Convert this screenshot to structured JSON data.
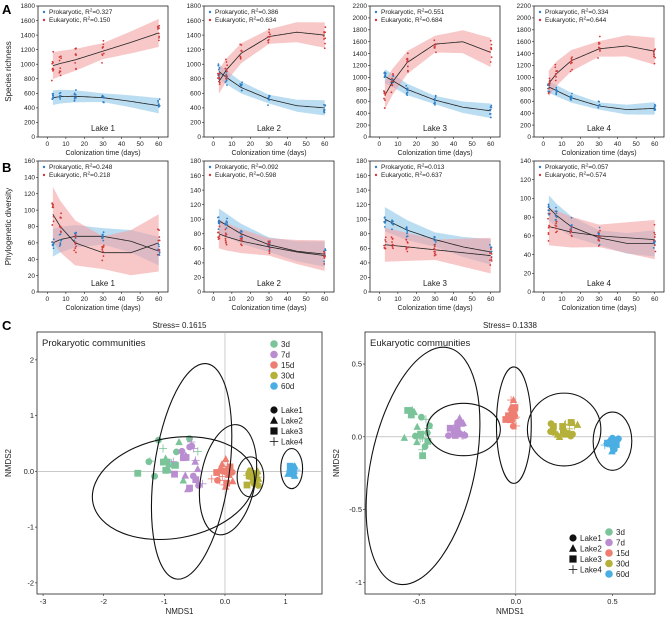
{
  "panel_letters": {
    "a": "A",
    "b": "B",
    "c": "C"
  },
  "chart_data": [
    {
      "id": "a1",
      "type": "scatter",
      "panel": "A",
      "title": "Lake 1",
      "xlabel": "Colonization time (days)",
      "ylabel": "Species richness",
      "ylim": [
        0,
        1800
      ],
      "yticks": [
        0,
        200,
        400,
        600,
        800,
        1000,
        1200,
        1400,
        1600,
        1800
      ],
      "xlim": [
        -5,
        65
      ],
      "xticks": [
        0,
        10,
        20,
        30,
        40,
        50,
        60
      ],
      "legend": [
        {
          "name": "Prokaryotic",
          "r2": "0.327"
        },
        {
          "name": "Eukaryotic",
          "r2": "0.150"
        }
      ],
      "series": [
        {
          "name": "Prokaryotic",
          "fit": [
            [
              3,
              540
            ],
            [
              7,
              555
            ],
            [
              15,
              560
            ],
            [
              30,
              540
            ],
            [
              45,
              490
            ],
            [
              60,
              430
            ]
          ],
          "band": 60,
          "spread": 110
        },
        {
          "name": "Eukaryotic",
          "fit": [
            [
              3,
              980
            ],
            [
              7,
              1010
            ],
            [
              15,
              1060
            ],
            [
              30,
              1180
            ],
            [
              45,
              1300
            ],
            [
              60,
              1430
            ]
          ],
          "band": 110,
          "spread": 250
        }
      ]
    },
    {
      "id": "a2",
      "type": "scatter",
      "panel": "A",
      "title": "Lake 2",
      "xlabel": "Colonization time (days)",
      "ylabel": "",
      "ylim": [
        0,
        1800
      ],
      "yticks": [
        0,
        200,
        400,
        600,
        800,
        1000,
        1200,
        1400,
        1600,
        1800
      ],
      "xlim": [
        -5,
        65
      ],
      "xticks": [
        0,
        10,
        20,
        30,
        40,
        50,
        60
      ],
      "legend": [
        {
          "name": "Prokaryotic",
          "r2": "0.386"
        },
        {
          "name": "Eukaryotic",
          "r2": "0.634"
        }
      ],
      "series": [
        {
          "name": "Prokaryotic",
          "fit": [
            [
              3,
              900
            ],
            [
              7,
              820
            ],
            [
              15,
              680
            ],
            [
              30,
              520
            ],
            [
              45,
              430
            ],
            [
              60,
              400
            ]
          ],
          "band": 60,
          "spread": 120
        },
        {
          "name": "Eukaryotic",
          "fit": [
            [
              3,
              760
            ],
            [
              7,
              920
            ],
            [
              15,
              1150
            ],
            [
              30,
              1380
            ],
            [
              45,
              1440
            ],
            [
              60,
              1400
            ]
          ],
          "band": 100,
          "spread": 220
        }
      ]
    },
    {
      "id": "a3",
      "type": "scatter",
      "panel": "A",
      "title": "Lake 3",
      "xlabel": "Colonization time (days)",
      "ylabel": "",
      "ylim": [
        0,
        2200
      ],
      "yticks": [
        0,
        200,
        400,
        600,
        800,
        1000,
        1200,
        1400,
        1600,
        1800,
        2000,
        2200
      ],
      "xlim": [
        -5,
        65
      ],
      "xticks": [
        0,
        10,
        20,
        30,
        40,
        50,
        60
      ],
      "legend": [
        {
          "name": "Prokaryotic",
          "r2": "0.551"
        },
        {
          "name": "Eukaryotic",
          "r2": "0.684"
        }
      ],
      "series": [
        {
          "name": "Prokaryotic",
          "fit": [
            [
              3,
              1020
            ],
            [
              7,
              950
            ],
            [
              15,
              800
            ],
            [
              30,
              620
            ],
            [
              45,
              500
            ],
            [
              60,
              440
            ]
          ],
          "band": 70,
          "spread": 130
        },
        {
          "name": "Eukaryotic",
          "fit": [
            [
              3,
              700
            ],
            [
              7,
              920
            ],
            [
              15,
              1250
            ],
            [
              30,
              1560
            ],
            [
              45,
              1600
            ],
            [
              60,
              1420
            ]
          ],
          "band": 140,
          "spread": 260
        }
      ]
    },
    {
      "id": "a4",
      "type": "scatter",
      "panel": "A",
      "title": "Lake 4",
      "xlabel": "Colonization time (days)",
      "ylabel": "",
      "ylim": [
        0,
        2200
      ],
      "yticks": [
        0,
        200,
        400,
        600,
        800,
        1000,
        1200,
        1400,
        1600,
        1800,
        2000,
        2200
      ],
      "xlim": [
        -5,
        65
      ],
      "xticks": [
        0,
        10,
        20,
        30,
        40,
        50,
        60
      ],
      "legend": [
        {
          "name": "Prokaryotic",
          "r2": "0.334"
        },
        {
          "name": "Eukaryotic",
          "r2": "0.644"
        }
      ],
      "series": [
        {
          "name": "Prokaryotic",
          "fit": [
            [
              3,
              840
            ],
            [
              7,
              780
            ],
            [
              15,
              660
            ],
            [
              30,
              520
            ],
            [
              45,
              460
            ],
            [
              60,
              480
            ]
          ],
          "band": 60,
          "spread": 120
        },
        {
          "name": "Eukaryotic",
          "fit": [
            [
              3,
              900
            ],
            [
              7,
              1060
            ],
            [
              15,
              1280
            ],
            [
              30,
              1480
            ],
            [
              45,
              1530
            ],
            [
              60,
              1440
            ]
          ],
          "band": 130,
          "spread": 260
        }
      ]
    },
    {
      "id": "b1",
      "type": "scatter",
      "panel": "B",
      "title": "Lake 1",
      "xlabel": "Colonization time (days)",
      "ylabel": "Phylogenetic diversity",
      "ylim": [
        0,
        160
      ],
      "yticks": [
        0,
        20,
        40,
        60,
        80,
        100,
        120,
        140,
        160
      ],
      "xlim": [
        -5,
        65
      ],
      "xticks": [
        0,
        10,
        20,
        30,
        40,
        50,
        60
      ],
      "legend": [
        {
          "name": "Prokaryotic",
          "r2": "0.248"
        },
        {
          "name": "Eukaryotic",
          "r2": "0.218"
        }
      ],
      "series": [
        {
          "name": "Prokaryotic",
          "fit": [
            [
              3,
              60
            ],
            [
              7,
              64
            ],
            [
              15,
              68
            ],
            [
              30,
              68
            ],
            [
              45,
              62
            ],
            [
              60,
              50
            ]
          ],
          "band": 10,
          "spread": 14
        },
        {
          "name": "Eukaryotic",
          "fit": [
            [
              3,
              95
            ],
            [
              7,
              80
            ],
            [
              15,
              60
            ],
            [
              30,
              48
            ],
            [
              45,
              48
            ],
            [
              60,
              60
            ]
          ],
          "band": 20,
          "spread": 28
        }
      ]
    },
    {
      "id": "b2",
      "type": "scatter",
      "panel": "B",
      "title": "Lake 2",
      "xlabel": "Colonization time (days)",
      "ylabel": "",
      "ylim": [
        0,
        180
      ],
      "yticks": [
        0,
        20,
        40,
        60,
        80,
        100,
        120,
        140,
        160,
        180
      ],
      "xlim": [
        -5,
        65
      ],
      "xticks": [
        0,
        10,
        20,
        30,
        40,
        50,
        60
      ],
      "legend": [
        {
          "name": "Prokaryotic",
          "r2": "0.092"
        },
        {
          "name": "Eukaryotic",
          "r2": "0.598"
        }
      ],
      "series": [
        {
          "name": "Prokaryotic",
          "fit": [
            [
              3,
              98
            ],
            [
              7,
              92
            ],
            [
              15,
              80
            ],
            [
              30,
              65
            ],
            [
              45,
              56
            ],
            [
              60,
              52
            ]
          ],
          "band": 10,
          "spread": 14
        },
        {
          "name": "Eukaryotic",
          "fit": [
            [
              3,
              80
            ],
            [
              7,
              76
            ],
            [
              15,
              70
            ],
            [
              30,
              62
            ],
            [
              45,
              55
            ],
            [
              60,
              50
            ]
          ],
          "band": 12,
          "spread": 16
        }
      ]
    },
    {
      "id": "b3",
      "type": "scatter",
      "panel": "B",
      "title": "Lake 3",
      "xlabel": "Colonization time (days)",
      "ylabel": "",
      "ylim": [
        0,
        180
      ],
      "yticks": [
        0,
        20,
        40,
        60,
        80,
        100,
        120,
        140,
        160,
        180
      ],
      "xlim": [
        -5,
        65
      ],
      "xticks": [
        0,
        10,
        20,
        30,
        40,
        50,
        60
      ],
      "legend": [
        {
          "name": "Prokaryotic",
          "r2": "0.013"
        },
        {
          "name": "Eukaryotic",
          "r2": "0.637"
        }
      ],
      "series": [
        {
          "name": "Prokaryotic",
          "fit": [
            [
              3,
              100
            ],
            [
              7,
              95
            ],
            [
              15,
              85
            ],
            [
              30,
              72
            ],
            [
              45,
              62
            ],
            [
              60,
              55
            ]
          ],
          "band": 10,
          "spread": 14
        },
        {
          "name": "Eukaryotic",
          "fit": [
            [
              3,
              65
            ],
            [
              7,
              64
            ],
            [
              15,
              62
            ],
            [
              30,
              58
            ],
            [
              45,
              54
            ],
            [
              60,
              50
            ]
          ],
          "band": 14,
          "spread": 18
        }
      ]
    },
    {
      "id": "b4",
      "type": "scatter",
      "panel": "B",
      "title": "Lake 4",
      "xlabel": "Colonization time (days)",
      "ylabel": "",
      "ylim": [
        0,
        140
      ],
      "yticks": [
        0,
        20,
        40,
        60,
        80,
        100,
        120,
        140
      ],
      "xlim": [
        -5,
        65
      ],
      "xticks": [
        0,
        10,
        20,
        30,
        40,
        50,
        60
      ],
      "legend": [
        {
          "name": "Prokaryotic",
          "r2": "0.057"
        },
        {
          "name": "Eukaryotic",
          "r2": "0.574"
        }
      ],
      "series": [
        {
          "name": "Prokaryotic",
          "fit": [
            [
              3,
              90
            ],
            [
              7,
              82
            ],
            [
              15,
              70
            ],
            [
              30,
              58
            ],
            [
              45,
              52
            ],
            [
              60,
              52
            ]
          ],
          "band": 8,
          "spread": 12
        },
        {
          "name": "Eukaryotic",
          "fit": [
            [
              3,
              70
            ],
            [
              7,
              68
            ],
            [
              15,
              64
            ],
            [
              30,
              60
            ],
            [
              45,
              58
            ],
            [
              60,
              56
            ]
          ],
          "band": 12,
          "spread": 20
        }
      ]
    },
    {
      "id": "c1",
      "type": "scatter",
      "panel": "C",
      "title": "Prokaryotic communities",
      "stress": "Stress= 0.1615",
      "xlabel": "NMDS1",
      "ylabel": "NMDS2",
      "xlim": [
        -3.1,
        1.6
      ],
      "ylim": [
        -2.2,
        2.5
      ],
      "xticks": [
        -3,
        -2,
        -1,
        0,
        1
      ],
      "yticks": [
        -2,
        -1,
        0,
        1,
        2
      ],
      "groups": [
        {
          "label": "3d",
          "color": "#7bc49a",
          "cx": -0.9,
          "cy": 0.2,
          "sx": 0.7,
          "sy": 0.55
        },
        {
          "label": "7d",
          "color": "#b98dd0",
          "cx": -0.55,
          "cy": 0.1,
          "sx": 0.45,
          "sy": 0.75
        },
        {
          "label": "15d",
          "color": "#ef7e72",
          "cx": 0.0,
          "cy": 0.0,
          "sx": 0.28,
          "sy": 0.45
        },
        {
          "label": "30d",
          "color": "#b4b03a",
          "cx": 0.45,
          "cy": -0.1,
          "sx": 0.17,
          "sy": 0.2
        },
        {
          "label": "60d",
          "color": "#4aaee3",
          "cx": 1.1,
          "cy": 0.0,
          "sx": 0.09,
          "sy": 0.12
        }
      ],
      "ellipses": [
        {
          "cx": -0.85,
          "cy": -0.3,
          "rx": 1.35,
          "ry": 0.9,
          "rot": -10
        },
        {
          "cx": -0.55,
          "cy": 0.0,
          "rx": 0.62,
          "ry": 1.95,
          "rot": 8
        },
        {
          "cx": 0.05,
          "cy": -0.15,
          "rx": 0.45,
          "ry": 1.0,
          "rot": 10
        },
        {
          "cx": 0.42,
          "cy": -0.1,
          "rx": 0.22,
          "ry": 0.36,
          "rot": 0
        },
        {
          "cx": 1.1,
          "cy": 0.05,
          "rx": 0.18,
          "ry": 0.36,
          "rot": 0
        }
      ],
      "group_legend": [
        "3d",
        "7d",
        "15d",
        "30d",
        "60d"
      ],
      "lake_legend": [
        "Lake1",
        "Lake2",
        "Lake3",
        "Lake4"
      ]
    },
    {
      "id": "c2",
      "type": "scatter",
      "panel": "C",
      "title": "Eukaryotic communities",
      "stress": "Stress= 0.1338",
      "xlabel": "NMDS1",
      "ylabel": "NMDS2",
      "xlim": [
        -0.78,
        0.72
      ],
      "ylim": [
        -1.08,
        0.72
      ],
      "xticks": [
        -0.5,
        0.0,
        0.5
      ],
      "yticks": [
        -1.0,
        -0.5,
        0.0,
        0.5
      ],
      "groups": [
        {
          "label": "3d",
          "color": "#7bc49a",
          "cx": -0.5,
          "cy": 0.05,
          "sx": 0.12,
          "sy": 0.3
        },
        {
          "label": "7d",
          "color": "#b98dd0",
          "cx": -0.3,
          "cy": 0.05,
          "sx": 0.08,
          "sy": 0.09
        },
        {
          "label": "15d",
          "color": "#ef7e72",
          "cx": -0.02,
          "cy": 0.15,
          "sx": 0.06,
          "sy": 0.16
        },
        {
          "label": "30d",
          "color": "#b4b03a",
          "cx": 0.25,
          "cy": 0.05,
          "sx": 0.1,
          "sy": 0.12
        },
        {
          "label": "60d",
          "color": "#4aaee3",
          "cx": 0.5,
          "cy": -0.05,
          "sx": 0.06,
          "sy": 0.09
        }
      ],
      "ellipses": [
        {
          "cx": -0.48,
          "cy": -0.2,
          "rx": 0.27,
          "ry": 0.83,
          "rot": 12
        },
        {
          "cx": -0.27,
          "cy": 0.05,
          "rx": 0.19,
          "ry": 0.18,
          "rot": 0
        },
        {
          "cx": -0.01,
          "cy": 0.08,
          "rx": 0.09,
          "ry": 0.4,
          "rot": 0
        },
        {
          "cx": 0.25,
          "cy": 0.05,
          "rx": 0.19,
          "ry": 0.25,
          "rot": 0
        },
        {
          "cx": 0.5,
          "cy": -0.03,
          "rx": 0.1,
          "ry": 0.2,
          "rot": 0
        }
      ],
      "group_legend": [
        "3d",
        "7d",
        "15d",
        "30d",
        "60d"
      ],
      "lake_legend": [
        "Lake1",
        "Lake2",
        "Lake3",
        "Lake4"
      ]
    }
  ],
  "colors": {
    "prokaryotic_band": "#8ec6ea",
    "prokaryotic_point": "#2f7fc4",
    "eukaryotic_band": "#f4a3a3",
    "eukaryotic_point": "#d23a3a"
  }
}
